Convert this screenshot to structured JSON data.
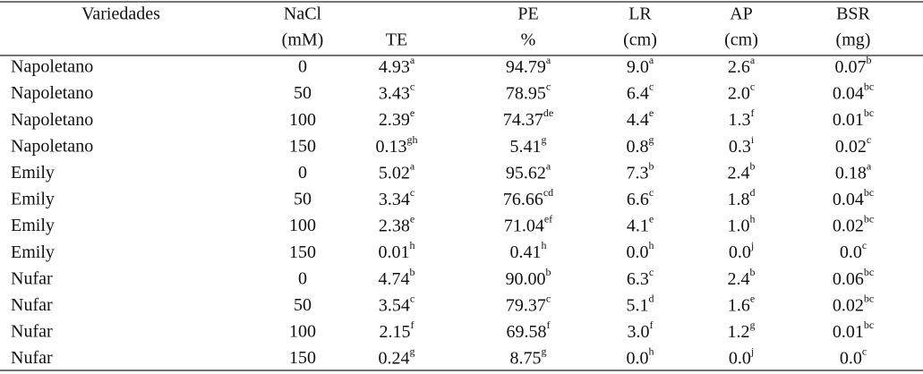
{
  "table": {
    "header": [
      {
        "top": "Variedades"
      },
      {
        "top": "NaCl",
        "bottom": "(mM)"
      },
      {
        "bottom": "TE"
      },
      {
        "top": "PE",
        "bottom": "%"
      },
      {
        "top": "LR",
        "bottom": "(cm)"
      },
      {
        "top": "AP",
        "bottom": "(cm)"
      },
      {
        "top": "BSR",
        "bottom": "(mg)"
      }
    ],
    "rows": [
      {
        "variety": "Napoletano",
        "nacl": "0",
        "cells": [
          {
            "v": "4.93",
            "s": "a"
          },
          {
            "v": "94.79",
            "s": "a"
          },
          {
            "v": "9.0",
            "s": "a"
          },
          {
            "v": "2.6",
            "s": "a"
          },
          {
            "v": "0.07",
            "s": "b"
          }
        ]
      },
      {
        "variety": "Napoletano",
        "nacl": "50",
        "cells": [
          {
            "v": "3.43",
            "s": "c"
          },
          {
            "v": "78.95",
            "s": "c"
          },
          {
            "v": "6.4",
            "s": "c"
          },
          {
            "v": "2.0",
            "s": "c"
          },
          {
            "v": "0.04",
            "s": "bc"
          }
        ]
      },
      {
        "variety": "Napoletano",
        "nacl": "100",
        "cells": [
          {
            "v": "2.39",
            "s": "e"
          },
          {
            "v": "74.37",
            "s": "de"
          },
          {
            "v": "4.4",
            "s": "e"
          },
          {
            "v": "1.3",
            "s": "f"
          },
          {
            "v": "0.01",
            "s": "bc"
          }
        ]
      },
      {
        "variety": "Napoletano",
        "nacl": "150",
        "cells": [
          {
            "v": "0.13",
            "s": "gh"
          },
          {
            "v": "5.41",
            "s": "g"
          },
          {
            "v": "0.8",
            "s": "g"
          },
          {
            "v": "0.3",
            "s": "i"
          },
          {
            "v": "0.02",
            "s": "c"
          }
        ]
      },
      {
        "variety": "Emily",
        "nacl": "0",
        "cells": [
          {
            "v": "5.02",
            "s": "a"
          },
          {
            "v": "95.62",
            "s": "a"
          },
          {
            "v": "7.3",
            "s": "b"
          },
          {
            "v": "2.4",
            "s": "b"
          },
          {
            "v": "0.18",
            "s": "a"
          }
        ]
      },
      {
        "variety": "Emily",
        "nacl": "50",
        "cells": [
          {
            "v": "3.34",
            "s": "c"
          },
          {
            "v": "76.66",
            "s": "cd"
          },
          {
            "v": "6.6",
            "s": "c"
          },
          {
            "v": "1.8",
            "s": "d"
          },
          {
            "v": "0.04",
            "s": "bc"
          }
        ]
      },
      {
        "variety": "Emily",
        "nacl": "100",
        "cells": [
          {
            "v": "2.38",
            "s": "e"
          },
          {
            "v": "71.04",
            "s": "ef"
          },
          {
            "v": "4.1",
            "s": "e"
          },
          {
            "v": "1.0",
            "s": "h"
          },
          {
            "v": "0.02",
            "s": "bc"
          }
        ]
      },
      {
        "variety": "Emily",
        "nacl": "150",
        "cells": [
          {
            "v": "0.01",
            "s": "h"
          },
          {
            "v": "0.41",
            "s": "h"
          },
          {
            "v": "0.0",
            "s": "h"
          },
          {
            "v": "0.0",
            "s": "j"
          },
          {
            "v": "0.0",
            "s": "c"
          }
        ]
      },
      {
        "variety": "Nufar",
        "nacl": "0",
        "cells": [
          {
            "v": "4.74",
            "s": "b"
          },
          {
            "v": "90.00",
            "s": "b"
          },
          {
            "v": "6.3",
            "s": "c"
          },
          {
            "v": "2.4",
            "s": "b"
          },
          {
            "v": "0.06",
            "s": "bc"
          }
        ]
      },
      {
        "variety": "Nufar",
        "nacl": "50",
        "cells": [
          {
            "v": "3.54",
            "s": "c"
          },
          {
            "v": "79.37",
            "s": "c"
          },
          {
            "v": "5.1",
            "s": "d"
          },
          {
            "v": "1.6",
            "s": "e"
          },
          {
            "v": "0.02",
            "s": "bc"
          }
        ]
      },
      {
        "variety": "Nufar",
        "nacl": "100",
        "cells": [
          {
            "v": "2.15",
            "s": "f"
          },
          {
            "v": "69.58",
            "s": "f"
          },
          {
            "v": "3.0",
            "s": "f"
          },
          {
            "v": "1.2",
            "s": "g"
          },
          {
            "v": "0.01",
            "s": "bc"
          }
        ]
      },
      {
        "variety": "Nufar",
        "nacl": "150",
        "cells": [
          {
            "v": "0.24",
            "s": "g"
          },
          {
            "v": "8.75",
            "s": "g"
          },
          {
            "v": "0.0",
            "s": "h"
          },
          {
            "v": "0.0",
            "s": "j"
          },
          {
            "v": "0.0",
            "s": "c"
          }
        ]
      }
    ]
  }
}
